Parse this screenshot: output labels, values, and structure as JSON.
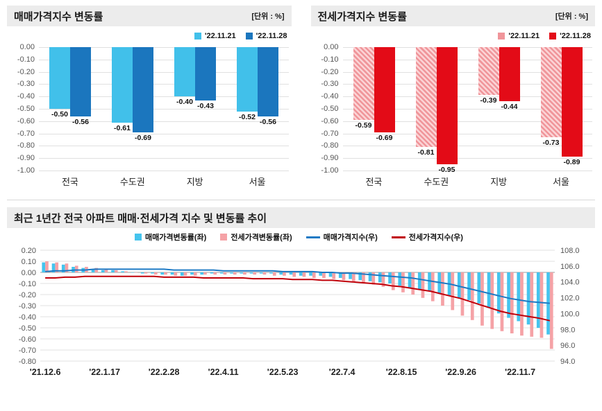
{
  "chart_data": [
    {
      "type": "bar",
      "title": "매매가격지수 변동률",
      "unit": "[단위 : %]",
      "categories": [
        "전국",
        "수도권",
        "지방",
        "서울"
      ],
      "series": [
        {
          "name": "'22.11.21",
          "color": "#41c0ea",
          "hatch": false,
          "color2": "#9fe0f5",
          "values": [
            -0.5,
            -0.61,
            -0.4,
            -0.52
          ]
        },
        {
          "name": "'22.11.28",
          "color": "#1b76be",
          "hatch": false,
          "color2": "#1b76be",
          "values": [
            -0.56,
            -0.69,
            -0.43,
            -0.56
          ]
        }
      ],
      "ylim": [
        -1.0,
        0.0
      ],
      "yticks": [
        "0.00",
        "-0.10",
        "-0.20",
        "-0.30",
        "-0.40",
        "-0.50",
        "-0.60",
        "-0.70",
        "-0.80",
        "-0.90",
        "-1.00"
      ]
    },
    {
      "type": "bar",
      "title": "전세가격지수 변동률",
      "unit": "[단위 : %]",
      "categories": [
        "전국",
        "수도권",
        "지방",
        "서울"
      ],
      "series": [
        {
          "name": "'22.11.21",
          "color": "#f0959a",
          "hatch": true,
          "color2": "#fbd4d6",
          "values": [
            -0.59,
            -0.81,
            -0.39,
            -0.73
          ]
        },
        {
          "name": "'22.11.28",
          "color": "#e30b17",
          "hatch": false,
          "color2": "#e30b17",
          "values": [
            -0.69,
            -0.95,
            -0.44,
            -0.89
          ]
        }
      ],
      "ylim": [
        -1.0,
        0.0
      ],
      "yticks": [
        "0.00",
        "-0.10",
        "-0.20",
        "-0.30",
        "-0.40",
        "-0.50",
        "-0.60",
        "-0.70",
        "-0.80",
        "-0.90",
        "-1.00"
      ]
    },
    {
      "type": "bar+line",
      "title": "최근 1년간 전국 아파트 매매·전세가격 지수 및 변동률 추이",
      "x_tick_labels": [
        "'21.12.6",
        "'22.1.17",
        "'22.2.28",
        "'22.4.11",
        "'22.5.23",
        "'22.7.4",
        "'22.8.15",
        "'22.9.26",
        "'22.11.7"
      ],
      "tick_every": 6,
      "bar_series": [
        {
          "name": "매매가격변동률(좌)",
          "color": "#45c4ee",
          "values": [
            0.09,
            0.08,
            0.07,
            0.05,
            0.04,
            0.03,
            0.02,
            0.02,
            0.01,
            0.0,
            -0.01,
            -0.01,
            -0.02,
            -0.02,
            -0.03,
            -0.02,
            -0.02,
            -0.01,
            -0.01,
            -0.01,
            -0.01,
            -0.01,
            -0.01,
            -0.01,
            -0.02,
            -0.02,
            -0.03,
            -0.03,
            -0.03,
            -0.04,
            -0.05,
            -0.06,
            -0.07,
            -0.08,
            -0.09,
            -0.1,
            -0.12,
            -0.14,
            -0.15,
            -0.17,
            -0.19,
            -0.21,
            -0.23,
            -0.25,
            -0.28,
            -0.32,
            -0.37,
            -0.41,
            -0.44,
            -0.47,
            -0.5,
            -0.56
          ]
        },
        {
          "name": "전세가격변동률(좌)",
          "color": "#f5a2a6",
          "values": [
            0.1,
            0.09,
            0.08,
            0.06,
            0.05,
            0.04,
            0.03,
            0.02,
            0.01,
            0.0,
            -0.01,
            -0.02,
            -0.02,
            -0.03,
            -0.03,
            -0.03,
            -0.02,
            -0.02,
            -0.02,
            -0.02,
            -0.02,
            -0.02,
            -0.02,
            -0.03,
            -0.03,
            -0.04,
            -0.04,
            -0.05,
            -0.05,
            -0.06,
            -0.07,
            -0.08,
            -0.09,
            -0.11,
            -0.13,
            -0.16,
            -0.18,
            -0.2,
            -0.23,
            -0.26,
            -0.3,
            -0.34,
            -0.39,
            -0.43,
            -0.48,
            -0.51,
            -0.53,
            -0.55,
            -0.57,
            -0.58,
            -0.59,
            -0.69
          ]
        }
      ],
      "line_series": [
        {
          "name": "매매가격지수(우)",
          "color": "#1d7ac5",
          "values": [
            105.3,
            105.4,
            105.4,
            105.5,
            105.5,
            105.6,
            105.6,
            105.6,
            105.6,
            105.6,
            105.6,
            105.6,
            105.6,
            105.5,
            105.5,
            105.5,
            105.5,
            105.5,
            105.4,
            105.4,
            105.4,
            105.4,
            105.4,
            105.4,
            105.3,
            105.3,
            105.3,
            105.3,
            105.2,
            105.2,
            105.1,
            105.1,
            105.0,
            104.9,
            104.8,
            104.7,
            104.6,
            104.5,
            104.3,
            104.1,
            103.9,
            103.7,
            103.4,
            103.1,
            102.8,
            102.5,
            102.2,
            101.9,
            101.7,
            101.5,
            101.4,
            101.3
          ]
        },
        {
          "name": "전세가격지수(우)",
          "color": "#c00009",
          "values": [
            104.5,
            104.5,
            104.6,
            104.6,
            104.7,
            104.7,
            104.7,
            104.7,
            104.7,
            104.7,
            104.7,
            104.7,
            104.6,
            104.6,
            104.6,
            104.6,
            104.5,
            104.5,
            104.5,
            104.5,
            104.5,
            104.4,
            104.4,
            104.4,
            104.4,
            104.3,
            104.3,
            104.3,
            104.2,
            104.2,
            104.1,
            104.0,
            103.9,
            103.8,
            103.7,
            103.5,
            103.4,
            103.2,
            103.0,
            102.8,
            102.5,
            102.2,
            101.9,
            101.5,
            101.1,
            100.7,
            100.3,
            100.0,
            99.8,
            99.6,
            99.4,
            99.1
          ]
        }
      ],
      "left_ylim": [
        -0.8,
        0.2
      ],
      "left_yticks": [
        "0.20",
        "0.10",
        "0.00",
        "-0.10",
        "-0.20",
        "-0.30",
        "-0.40",
        "-0.50",
        "-0.60",
        "-0.70",
        "-0.80"
      ],
      "right_ylim": [
        94.0,
        108.0
      ],
      "right_yticks": [
        "108.0",
        "106.0",
        "104.0",
        "102.0",
        "100.0",
        "98.0",
        "96.0",
        "94.0"
      ]
    }
  ]
}
